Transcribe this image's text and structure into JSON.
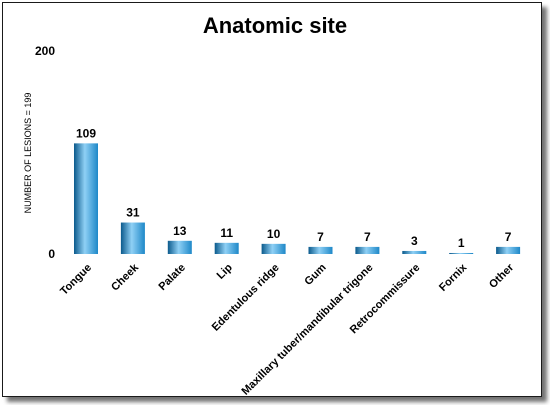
{
  "chart_data": {
    "type": "bar",
    "title": "Anatomic site",
    "xlabel": "",
    "ylabel": "NUMBER OF LESIONS = 199",
    "ylim": [
      0,
      200
    ],
    "yticks": [
      "0",
      "200"
    ],
    "grid": false,
    "categories": [
      "Tongue",
      "Cheek",
      "Palate",
      "Lip",
      "Edentulous ridge",
      "Gum",
      "Maxillary tuber/mandibular trigone",
      "Retrocommissure",
      "Fornix",
      "Other"
    ],
    "values": [
      109,
      31,
      13,
      11,
      10,
      7,
      7,
      3,
      1,
      7
    ],
    "colors": {
      "bar_dark": "#0b5a8c",
      "bar_mid": "#1e88c8",
      "bar_light": "#8fd0f5"
    }
  }
}
